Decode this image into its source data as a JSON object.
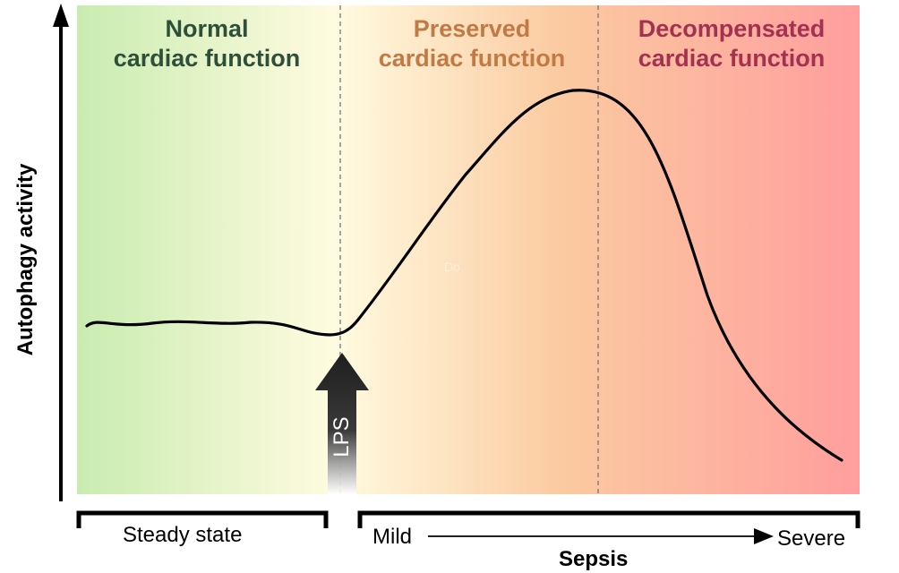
{
  "diagram": {
    "y_axis_label": "Autophagy activity",
    "phases": [
      {
        "line1": "Normal",
        "line2": "cardiac function",
        "color": "#2f4f3a"
      },
      {
        "line1": "Preserved",
        "line2": "cardiac function",
        "color": "#c27a45"
      },
      {
        "line1": "Decompensated",
        "line2": "cardiac function",
        "color": "#a53150"
      }
    ],
    "background_colors": {
      "green": "#c9ecb0",
      "yellow": "#fffbe0",
      "orange": "#fbcaa0",
      "red": "#ff9e9e"
    },
    "stimulus_label": "LPS",
    "steady_state_label": "Steady state",
    "sepsis_label": "Sepsis",
    "sepsis_start": "Mild",
    "sepsis_end": "Severe",
    "faint_watermark": "Do"
  }
}
